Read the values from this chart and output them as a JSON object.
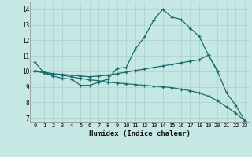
{
  "xlabel": "Humidex (Indice chaleur)",
  "bg_color": "#c5e8e5",
  "grid_color": "#aed4d0",
  "line_color": "#1a6b6b",
  "xlim": [
    -0.5,
    23.5
  ],
  "ylim": [
    6.7,
    14.5
  ],
  "yticks": [
    7,
    8,
    9,
    10,
    11,
    12,
    13,
    14
  ],
  "xticks": [
    0,
    1,
    2,
    3,
    4,
    5,
    6,
    7,
    8,
    9,
    10,
    11,
    12,
    13,
    14,
    15,
    16,
    17,
    18,
    19,
    20,
    21,
    22,
    23
  ],
  "line1_x": [
    0,
    1,
    2,
    3,
    4,
    5,
    6,
    7,
    8,
    9,
    10,
    11,
    12,
    13,
    14,
    15,
    16,
    17,
    18,
    19,
    20,
    21,
    22,
    23
  ],
  "line1_y": [
    10.6,
    9.9,
    9.7,
    9.55,
    9.5,
    9.1,
    9.1,
    9.3,
    9.5,
    10.2,
    10.25,
    11.45,
    12.2,
    13.3,
    14.0,
    13.5,
    13.35,
    12.8,
    12.25,
    11.05,
    10.0,
    8.6,
    7.8,
    6.8
  ],
  "line2_x": [
    0,
    1,
    2,
    3,
    4,
    5,
    6,
    7,
    8,
    9,
    10,
    11,
    12,
    13,
    14,
    15,
    16,
    17,
    18,
    19,
    20
  ],
  "line2_y": [
    10.05,
    9.95,
    9.85,
    9.8,
    9.75,
    9.7,
    9.65,
    9.7,
    9.75,
    9.85,
    9.95,
    10.05,
    10.15,
    10.25,
    10.35,
    10.45,
    10.55,
    10.65,
    10.75,
    11.05,
    10.05
  ],
  "line3_x": [
    0,
    1,
    2,
    3,
    4,
    5,
    6,
    7,
    8,
    9,
    10,
    11,
    12,
    13,
    14,
    15,
    16,
    17,
    18,
    19,
    20,
    21,
    22,
    23
  ],
  "line3_y": [
    10.0,
    9.9,
    9.8,
    9.75,
    9.65,
    9.55,
    9.45,
    9.4,
    9.3,
    9.25,
    9.2,
    9.15,
    9.1,
    9.05,
    9.0,
    8.95,
    8.85,
    8.75,
    8.6,
    8.4,
    8.1,
    7.7,
    7.3,
    6.8
  ]
}
